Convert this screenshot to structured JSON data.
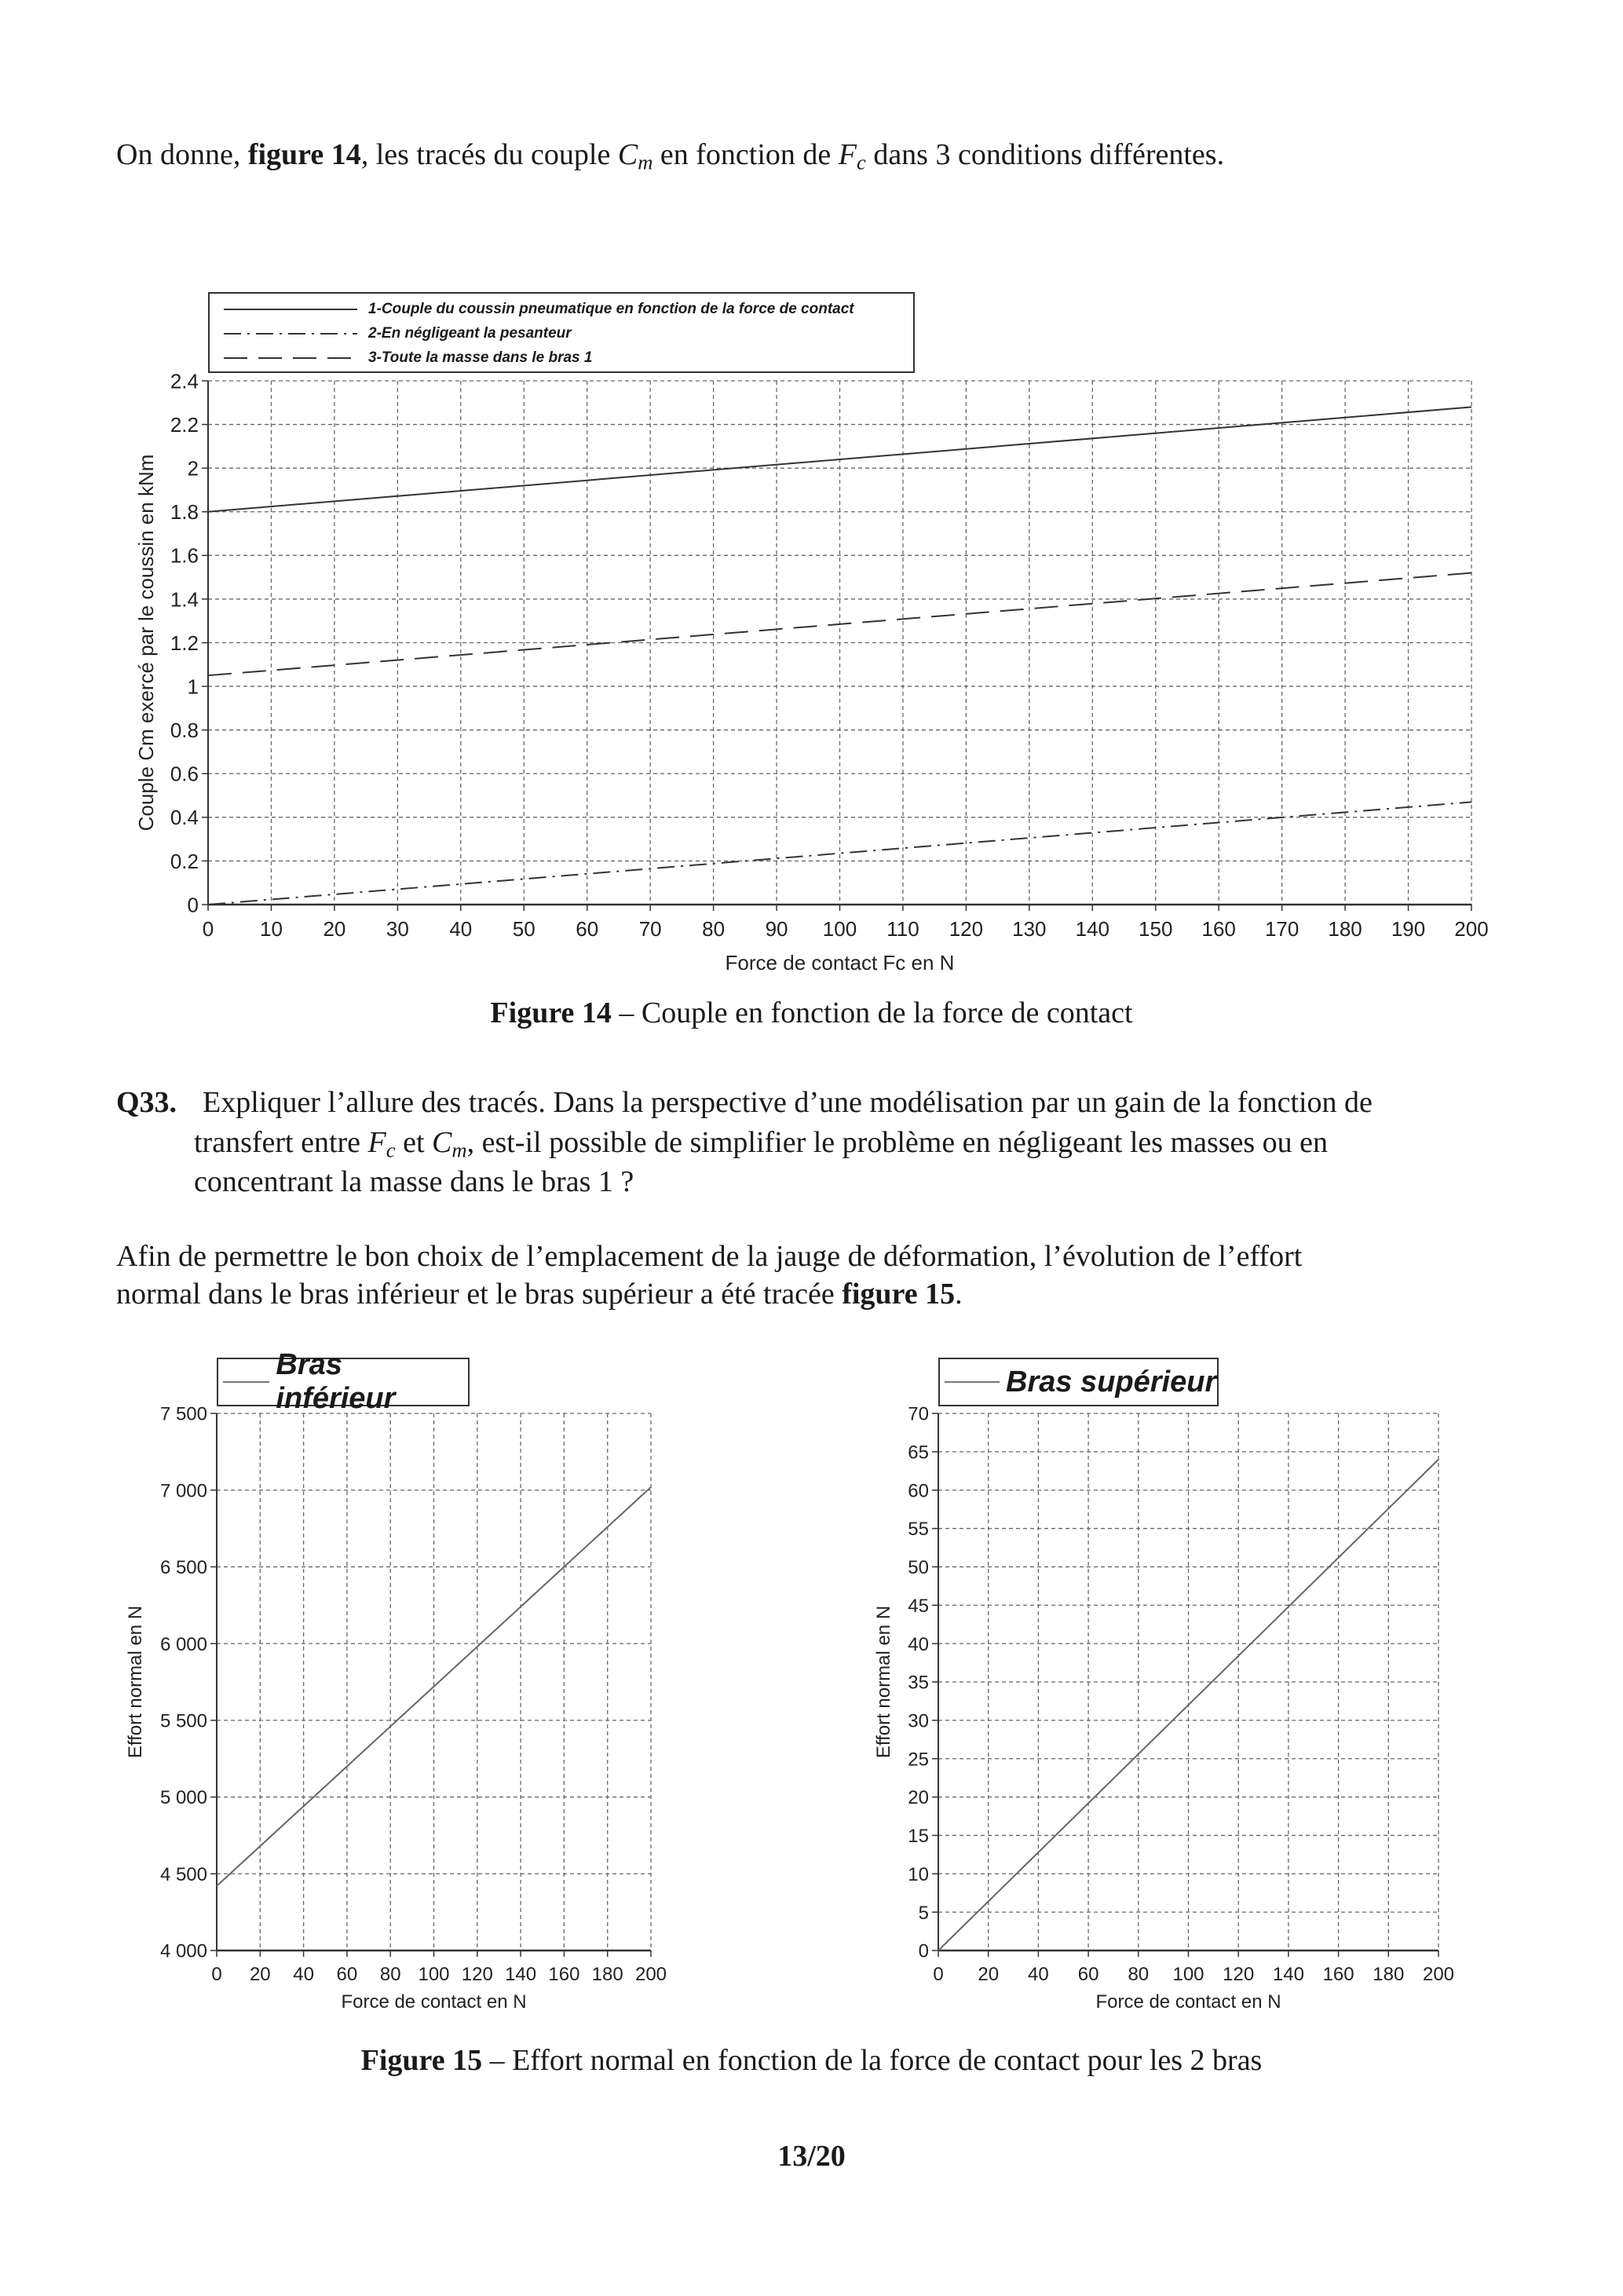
{
  "intro": {
    "prefix": "On donne, ",
    "fig_ref": "figure 14",
    "mid": ", les tracés du couple ",
    "cm": "C",
    "cm_sub": "m",
    "mid2": " en fonction de ",
    "fc": "F",
    "fc_sub": "c",
    "suffix": " dans 3 conditions différentes."
  },
  "figure14_caption": {
    "label": "Figure 14",
    "text": " – Couple en fonction de la force de contact"
  },
  "q33": {
    "number": "Q33.",
    "line1": "Expliquer l’allure des tracés. Dans la perspective d’une modélisation par un gain de la fonction de",
    "line2_a": "transfert entre ",
    "fc": "F",
    "fc_sub": "c",
    "line2_b": " et ",
    "cm": "C",
    "cm_sub": "m",
    "line2_c": ", est-il possible de simplifier le problème en négligeant les masses ou en",
    "line3": "concentrant la masse dans le bras 1 ?"
  },
  "paragraph": {
    "line1": "Afin de permettre le bon choix de l’emplacement de la jauge de déformation, l’évolution de l’effort",
    "line2": "normal dans le bras inférieur et le bras supérieur a été tracée ",
    "fig_ref": "figure 15",
    "end": "."
  },
  "figure15_caption": {
    "label": "Figure 15",
    "text": " – Effort normal en fonction de la force de contact pour les 2 bras"
  },
  "page_number": "13/20",
  "chart_data": [
    {
      "type": "line",
      "xlabel": "Force de contact Fc  en N",
      "ylabel": "Couple Cm  exercé par le coussin en kNm",
      "xlim": [
        0,
        200
      ],
      "ylim": [
        0,
        2.4
      ],
      "xticks": [
        "0",
        "10",
        "20",
        "30",
        "40",
        "50",
        "60",
        "70",
        "80",
        "90",
        "100",
        "110",
        "120",
        "130",
        "140",
        "150",
        "160",
        "170",
        "180",
        "190",
        "200"
      ],
      "yticks": [
        "0",
        "0.2",
        "0.4",
        "0.6",
        "0.8",
        "1",
        "1.2",
        "1.4",
        "1.6",
        "1.8",
        "2",
        "2.2",
        "2.4"
      ],
      "grid": true,
      "legend_position": "top-left, above plot",
      "series": [
        {
          "name": "1-Couple du coussin pneumatique en fonction de la force de contact",
          "style": "solid",
          "x": [
            0,
            200
          ],
          "y": [
            1.8,
            2.28
          ]
        },
        {
          "name": "2-En négligeant la pesanteur",
          "style": "dash-dot",
          "x": [
            0,
            200
          ],
          "y": [
            0.0,
            0.47
          ]
        },
        {
          "name": "3-Toute la masse dans le bras 1",
          "style": "dashed",
          "x": [
            0,
            200
          ],
          "y": [
            1.05,
            1.52
          ]
        }
      ]
    },
    {
      "type": "line",
      "xlabel": "Force de contact en N",
      "ylabel": "Effort normal en N",
      "xlim": [
        0,
        200
      ],
      "ylim": [
        4000,
        7500
      ],
      "xticks": [
        "0",
        "20",
        "40",
        "60",
        "80",
        "100",
        "120",
        "140",
        "160",
        "180",
        "200"
      ],
      "yticks": [
        "4 000",
        "4 500",
        "5 000",
        "5 500",
        "6 000",
        "6 500",
        "7 000",
        "7 500"
      ],
      "grid": true,
      "legend_position": "top-left, above plot",
      "series": [
        {
          "name": "Bras inférieur",
          "style": "solid",
          "x": [
            0,
            200
          ],
          "y": [
            4420,
            7020
          ]
        }
      ]
    },
    {
      "type": "line",
      "xlabel": "Force de contact en N",
      "ylabel": "Effort normal en N",
      "xlim": [
        0,
        200
      ],
      "ylim": [
        0,
        70
      ],
      "xticks": [
        "0",
        "20",
        "40",
        "60",
        "80",
        "100",
        "120",
        "140",
        "160",
        "180",
        "200"
      ],
      "yticks": [
        "0",
        "5",
        "10",
        "15",
        "20",
        "25",
        "30",
        "35",
        "40",
        "45",
        "50",
        "55",
        "60",
        "65",
        "70"
      ],
      "grid": true,
      "legend_position": "top-left, above plot",
      "series": [
        {
          "name": "Bras supérieur",
          "style": "solid",
          "x": [
            0,
            200
          ],
          "y": [
            0,
            64
          ]
        }
      ]
    }
  ]
}
